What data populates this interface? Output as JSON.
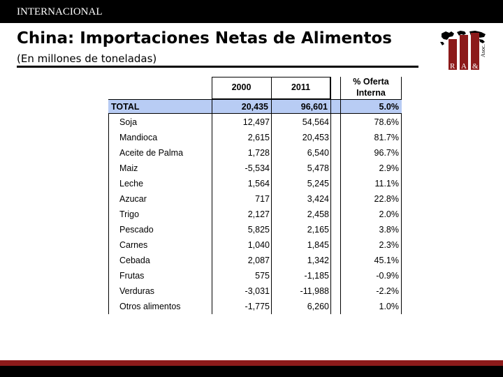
{
  "header": {
    "section": "INTERNACIONAL"
  },
  "title": "China: Importaciones Netas de Alimentos",
  "subtitle": "(En millones de toneladas)",
  "logo": {
    "letters": [
      "R",
      "A",
      "&",
      "Asoc."
    ],
    "icon": "world-map-logo-icon"
  },
  "table": {
    "columns": [
      "2000",
      "2011",
      "% Oferta",
      "Interna"
    ],
    "total": {
      "label": "TOTAL",
      "v2000": "20,435",
      "v2011": "96,601",
      "pct": "5.0%"
    },
    "rows": [
      {
        "label": "Soja",
        "v2000": "12,497",
        "v2011": "54,564",
        "pct": "78.6%"
      },
      {
        "label": "Mandioca",
        "v2000": "2,615",
        "v2011": "20,453",
        "pct": "81.7%"
      },
      {
        "label": "Aceite de Palma",
        "v2000": "1,728",
        "v2011": "6,540",
        "pct": "96.7%"
      },
      {
        "label": "Maiz",
        "v2000": "-5,534",
        "v2011": "5,478",
        "pct": "2.9%"
      },
      {
        "label": "Leche",
        "v2000": "1,564",
        "v2011": "5,245",
        "pct": "11.1%"
      },
      {
        "label": "Azucar",
        "v2000": "717",
        "v2011": "3,424",
        "pct": "22.8%"
      },
      {
        "label": "Trigo",
        "v2000": "2,127",
        "v2011": "2,458",
        "pct": "2.0%"
      },
      {
        "label": "Pescado",
        "v2000": "5,825",
        "v2011": "2,165",
        "pct": "3.8%"
      },
      {
        "label": "Carnes",
        "v2000": "1,040",
        "v2011": "1,845",
        "pct": "2.3%"
      },
      {
        "label": "Cebada",
        "v2000": "2,087",
        "v2011": "1,342",
        "pct": "45.1%"
      },
      {
        "label": "Frutas",
        "v2000": "575",
        "v2011": "-1,185",
        "pct": "-0.9%"
      },
      {
        "label": "Verduras",
        "v2000": "-3,031",
        "v2011": "-11,988",
        "pct": "-2.2%"
      },
      {
        "label": "Otros alimentos",
        "v2000": "-1,775",
        "v2011": "6,260",
        "pct": "1.0%"
      }
    ]
  },
  "colors": {
    "total_row": "#b8ccf4",
    "accent": "#8c1a1a",
    "bar": "#000000"
  }
}
